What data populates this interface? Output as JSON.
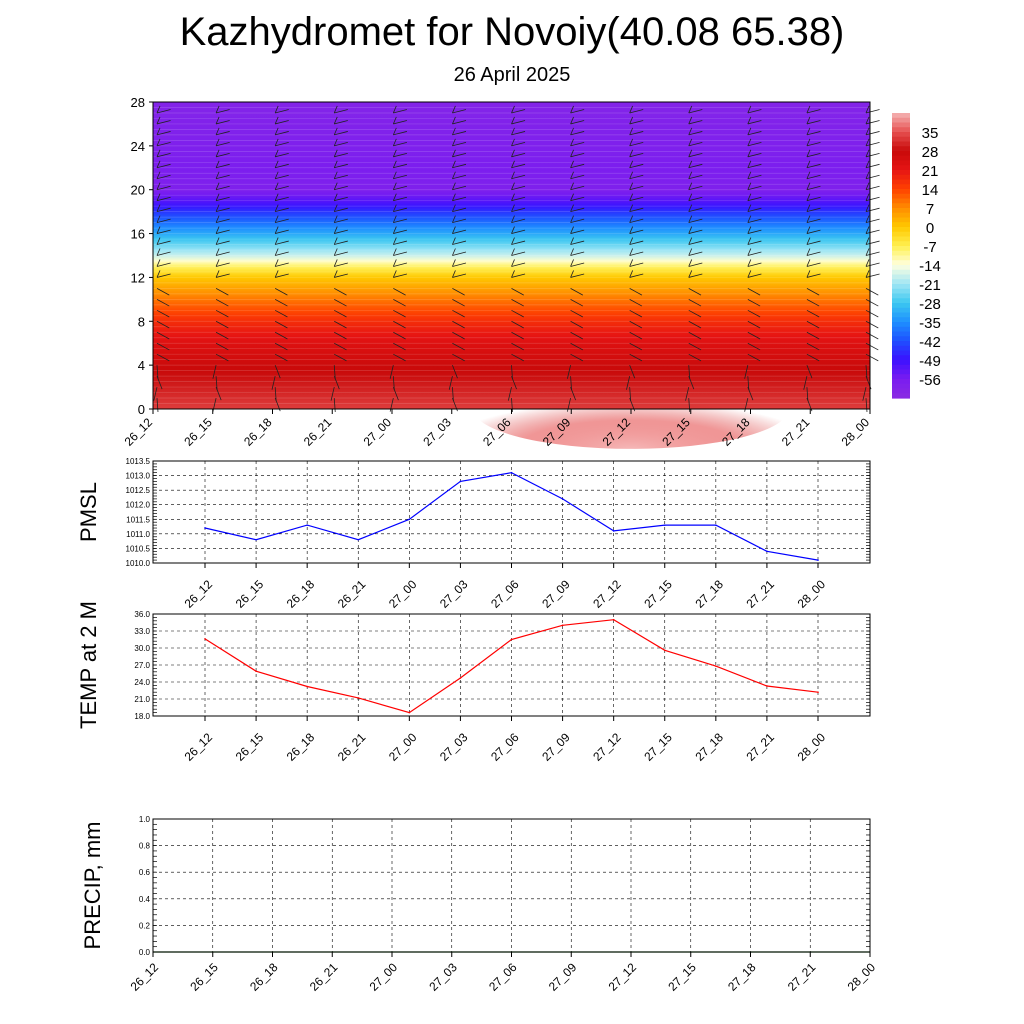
{
  "header": {
    "title": "Kazhydromet for Novoiy(40.08 65.38)",
    "subtitle": "26 April 2025"
  },
  "time_labels": [
    "26_12",
    "26_15",
    "26_18",
    "26_21",
    "27_00",
    "27_03",
    "27_06",
    "27_09",
    "27_12",
    "27_15",
    "27_18",
    "27_21",
    "28_00"
  ],
  "colors": {
    "pmsl_line": "#0000ff",
    "temp_line": "#ff0000",
    "precip_line": "#006400",
    "grid": "#000000"
  },
  "chart_data": [
    {
      "type": "heatmap",
      "name": "upper-air-temperature-cross-section",
      "yticks": [
        0,
        4,
        8,
        12,
        16,
        20,
        24,
        28
      ],
      "ylim": [
        0,
        28
      ],
      "x": [
        "26_12",
        "26_15",
        "26_18",
        "26_21",
        "27_00",
        "27_03",
        "27_06",
        "27_09",
        "27_12",
        "27_15",
        "27_18",
        "27_21",
        "28_00"
      ],
      "colorbar": {
        "labels": [
          "35",
          "28",
          "21",
          "14",
          "7",
          "0",
          "-7",
          "-14",
          "-21",
          "-28",
          "-35",
          "-42",
          "-49",
          "-56"
        ],
        "range": [
          -63,
          42
        ],
        "stops": [
          {
            "v": -63,
            "c": "#8a2be2"
          },
          {
            "v": -56,
            "c": "#7a1cf0"
          },
          {
            "v": -49,
            "c": "#3b10ff"
          },
          {
            "v": -42,
            "c": "#1e50ff"
          },
          {
            "v": -35,
            "c": "#1e90ff"
          },
          {
            "v": -28,
            "c": "#3cc8f0"
          },
          {
            "v": -21,
            "c": "#a0e6f5"
          },
          {
            "v": -14,
            "c": "#ffffe0"
          },
          {
            "v": -7,
            "c": "#fff050"
          },
          {
            "v": 0,
            "c": "#ffc800"
          },
          {
            "v": 7,
            "c": "#ff8c00"
          },
          {
            "v": 14,
            "c": "#ff4000"
          },
          {
            "v": 21,
            "c": "#e61414"
          },
          {
            "v": 28,
            "c": "#c80a0a"
          },
          {
            "v": 35,
            "c": "#e65050"
          },
          {
            "v": 42,
            "c": "#f5b4b4"
          }
        ]
      },
      "temperature_profile": [
        {
          "level": 0,
          "t": 33
        },
        {
          "level": 2,
          "t": 30
        },
        {
          "level": 4,
          "t": 27
        },
        {
          "level": 6,
          "t": 23
        },
        {
          "level": 8,
          "t": 17
        },
        {
          "level": 10,
          "t": 9
        },
        {
          "level": 12,
          "t": 0
        },
        {
          "level": 13,
          "t": -8
        },
        {
          "level": 14,
          "t": -18
        },
        {
          "level": 16,
          "t": -32
        },
        {
          "level": 18,
          "t": -45
        },
        {
          "level": 19,
          "t": -52
        },
        {
          "level": 20,
          "t": -58
        },
        {
          "level": 22,
          "t": -57
        },
        {
          "level": 24,
          "t": -58
        },
        {
          "level": 28,
          "t": -60
        }
      ],
      "surface_warm_anomaly": {
        "time": "27_12",
        "peak": 42
      }
    },
    {
      "type": "line",
      "name": "PMSL",
      "ylabel": "PMSL",
      "categories": [
        "26_12",
        "26_15",
        "26_18",
        "26_21",
        "27_00",
        "27_03",
        "27_06",
        "27_09",
        "27_12",
        "27_15",
        "27_18",
        "27_21",
        "28_00"
      ],
      "values": [
        1011.2,
        1010.8,
        1011.3,
        1010.8,
        1011.5,
        1012.8,
        1013.1,
        1012.2,
        1011.1,
        1011.3,
        1011.3,
        1010.4,
        1010.1
      ],
      "ylim": [
        1010.0,
        1013.5
      ],
      "yticks": [
        "1010.0",
        "1010.5",
        "1011.0",
        "1011.5",
        "1012.0",
        "1012.5",
        "1013.0",
        "1013.5"
      ]
    },
    {
      "type": "line",
      "name": "TEMP at 2 M",
      "ylabel": "TEMP at 2 M",
      "categories": [
        "26_12",
        "26_15",
        "26_18",
        "26_21",
        "27_00",
        "27_03",
        "27_06",
        "27_09",
        "27_12",
        "27_15",
        "27_18",
        "27_21",
        "28_00"
      ],
      "values": [
        31.6,
        25.9,
        23.2,
        21.2,
        18.6,
        24.7,
        31.5,
        34.0,
        35.0,
        29.6,
        26.8,
        23.3,
        22.2
      ],
      "ylim": [
        18.0,
        36.0
      ],
      "yticks": [
        "18.0",
        "21.0",
        "24.0",
        "27.0",
        "30.0",
        "33.0",
        "36.0"
      ]
    },
    {
      "type": "line",
      "name": "PRECIP, mm",
      "ylabel": "PRECIP, mm",
      "categories": [
        "26_12",
        "26_15",
        "26_18",
        "26_21",
        "27_00",
        "27_03",
        "27_06",
        "27_09",
        "27_12",
        "27_15",
        "27_18",
        "27_21",
        "28_00"
      ],
      "values": [
        0,
        0,
        0,
        0,
        0,
        0,
        0,
        0,
        0,
        0,
        0,
        0,
        0
      ],
      "ylim": [
        0.0,
        1.0
      ],
      "yticks": [
        "0.0",
        "0.2",
        "0.4",
        "0.6",
        "0.8",
        "1.0"
      ]
    }
  ]
}
